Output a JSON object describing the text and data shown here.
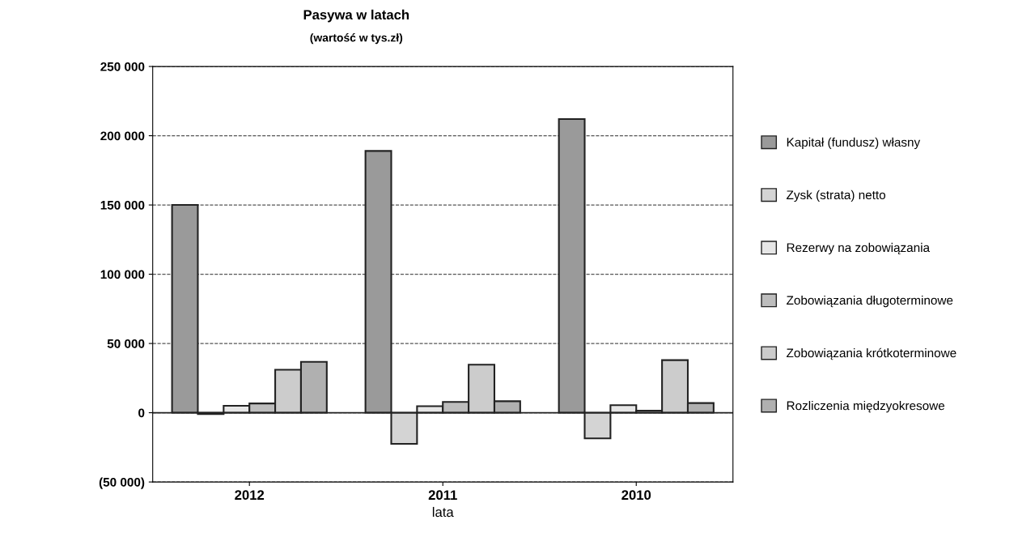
{
  "chart_data": {
    "type": "bar",
    "title": "Pasywa w latach",
    "subtitle": "(wartość w tys.zł)",
    "xlabel": "lata",
    "categories": [
      "2012",
      "2011",
      "2010"
    ],
    "series": [
      {
        "name": "Kapitał (fundusz) własny",
        "color": "#9a9a9a",
        "values": [
          150000,
          189000,
          212000
        ]
      },
      {
        "name": "Zysk (strata) netto",
        "color": "#d4d4d4",
        "values": [
          -1000,
          -22500,
          -18500
        ]
      },
      {
        "name": "Rezerwy na zobowiązania",
        "color": "#e6e6e6",
        "values": [
          5000,
          4700,
          5500
        ]
      },
      {
        "name": "Zobowiązania długoterminowe",
        "color": "#bdbdbd",
        "values": [
          6700,
          7800,
          1500
        ]
      },
      {
        "name": "Zobowiązania krótkoterminowe",
        "color": "#cccccc",
        "values": [
          31000,
          34700,
          38000
        ]
      },
      {
        "name": "Rozliczenia międzyokresowe",
        "color": "#b0b0b0",
        "values": [
          36700,
          8300,
          7000
        ]
      }
    ],
    "ylim": [
      -50000,
      250000
    ],
    "yticks": [
      {
        "value": -50000,
        "label": "(50 000)"
      },
      {
        "value": 0,
        "label": "0"
      },
      {
        "value": 50000,
        "label": "50 000"
      },
      {
        "value": 100000,
        "label": "100 000"
      },
      {
        "value": 150000,
        "label": "150 000"
      },
      {
        "value": 200000,
        "label": "200 000"
      },
      {
        "value": 250000,
        "label": "250 000"
      }
    ],
    "grid": "y",
    "legend": "right"
  }
}
